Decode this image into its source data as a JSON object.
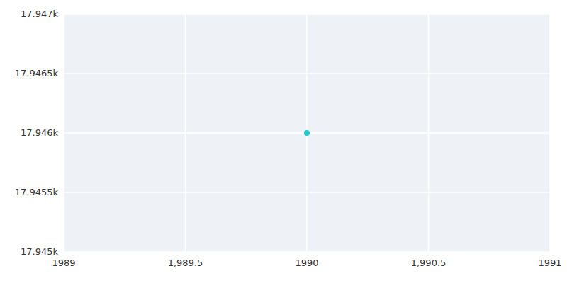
{
  "chart_data": {
    "type": "scatter",
    "x": [
      1990
    ],
    "values": [
      17946
    ],
    "color": "#20c8c8",
    "xlim": [
      1989,
      1991
    ],
    "ylim": [
      17945,
      17947
    ],
    "xticks": [
      1989,
      {
        "value": 1989.5,
        "label": "1,989.5"
      },
      1990,
      {
        "value": 1990.5,
        "label": "1,990.5"
      },
      1991
    ],
    "yticks": [
      {
        "value": 17945,
        "label": "17.945k"
      },
      {
        "value": 17945.5,
        "label": "17.9455k"
      },
      {
        "value": 17946,
        "label": "17.946k"
      },
      {
        "value": 17946.5,
        "label": "17.9465k"
      },
      {
        "value": 17947,
        "label": "17.947k"
      }
    ],
    "grid": true
  }
}
